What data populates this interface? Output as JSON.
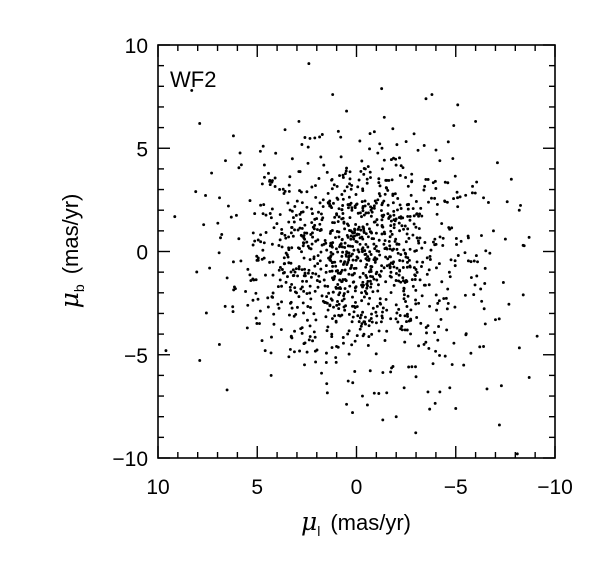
{
  "chart_data": {
    "type": "scatter",
    "title": "",
    "panel_label": "WF2",
    "xlabel": {
      "symbol": "μ",
      "subscript": "l",
      "unit": "(mas/yr)"
    },
    "ylabel": {
      "symbol": "μ",
      "subscript": "b",
      "unit": "(mas/yr)"
    },
    "xlim": [
      10,
      -10
    ],
    "ylim": [
      -10,
      10
    ],
    "x_reversed": true,
    "xticks": [
      10,
      5,
      0,
      -5,
      -10
    ],
    "xtick_labels": [
      "10",
      "5",
      "0",
      "−5",
      "−10"
    ],
    "yticks": [
      10,
      5,
      0,
      -5,
      -10
    ],
    "ytick_labels": [
      "10",
      "5",
      "0",
      "−5",
      "−10"
    ],
    "x_minor_step": 1,
    "y_minor_step": 1,
    "grid": false,
    "legend": "none",
    "marker_color": "#000000",
    "approximate_point_count": 1200,
    "series": [
      {
        "outlier_points": [
          [
            8.3,
            7.8
          ],
          [
            7.9,
            6.2
          ],
          [
            2.4,
            9.1
          ],
          [
            1.2,
            7.6
          ],
          [
            9.6,
            -4.8
          ],
          [
            -3.8,
            7.6
          ],
          [
            -3.5,
            7.4
          ],
          [
            -5.1,
            7.1
          ],
          [
            -7.1,
            4.3
          ],
          [
            -7.8,
            3.5
          ],
          [
            -8.2,
            2.0
          ],
          [
            -8.4,
            -2.1
          ],
          [
            -9.1,
            -4.1
          ],
          [
            -8.7,
            -6.1
          ],
          [
            -7.3,
            -6.5
          ],
          [
            -7.2,
            -8.4
          ],
          [
            -8.1,
            -9.8
          ],
          [
            -5.0,
            -7.6
          ],
          [
            -4.7,
            -6.6
          ],
          [
            -4.2,
            -6.8
          ],
          [
            0.5,
            -7.4
          ],
          [
            0.2,
            -7.8
          ],
          [
            -0.3,
            -7.0
          ],
          [
            -2.0,
            -8.0
          ],
          [
            -3.6,
            -6.8
          ],
          [
            6.2,
            5.6
          ],
          [
            5.8,
            4.2
          ],
          [
            6.6,
            4.4
          ],
          [
            7.3,
            3.8
          ],
          [
            4.7,
            5.1
          ],
          [
            2.9,
            6.3
          ],
          [
            0.5,
            6.8
          ],
          [
            -1.4,
            6.5
          ],
          [
            -2.9,
            5.7
          ],
          [
            -4.9,
            6.1
          ],
          [
            -6.0,
            6.3
          ],
          [
            -6.4,
            2.6
          ],
          [
            -6.9,
            1.0
          ],
          [
            -7.5,
            0.6
          ],
          [
            -7.4,
            -1.5
          ],
          [
            -7.0,
            -3.3
          ],
          [
            -6.4,
            -4.6
          ],
          [
            -5.4,
            -5.5
          ],
          [
            -2.4,
            -6.6
          ],
          [
            1.5,
            -6.4
          ],
          [
            4.3,
            -6.0
          ],
          [
            4.6,
            -4.8
          ],
          [
            5.5,
            -3.7
          ],
          [
            6.1,
            -1.8
          ],
          [
            7.4,
            -0.8
          ],
          [
            7.7,
            1.3
          ],
          [
            8.1,
            2.9
          ],
          [
            6.9,
            2.6
          ],
          [
            6.2,
            -0.5
          ],
          [
            5.2,
            0.9
          ],
          [
            3.6,
            5.9
          ],
          [
            2.1,
            5.5
          ],
          [
            -0.9,
            5.8
          ],
          [
            -3.1,
            4.9
          ],
          [
            -4.2,
            4.4
          ]
        ],
        "cluster": {
          "center": [
            0.0,
            -0.3
          ],
          "sigma": [
            2.9,
            2.5
          ],
          "count": 1140
        }
      }
    ]
  }
}
